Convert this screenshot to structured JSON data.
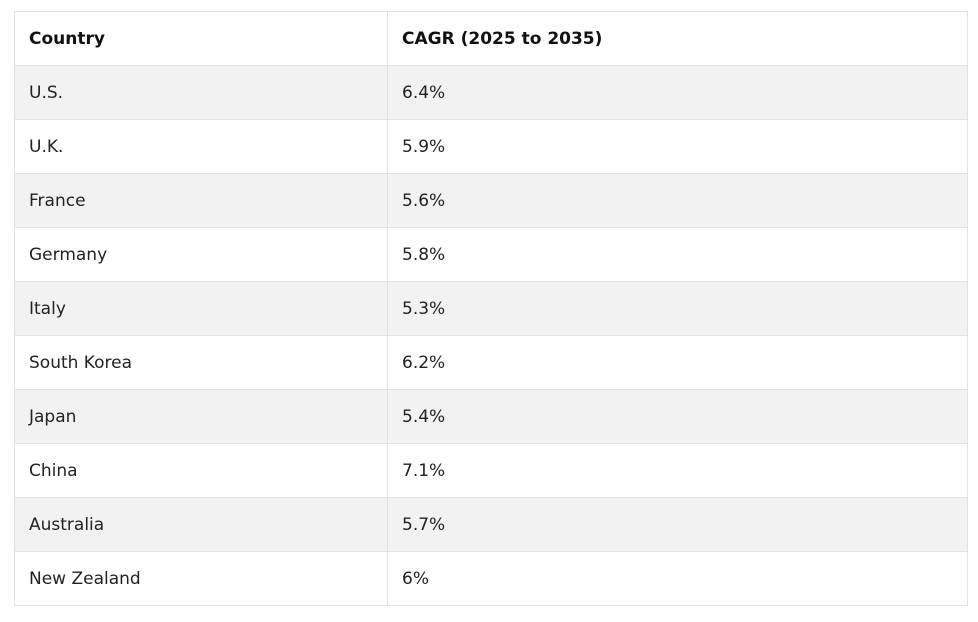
{
  "chart_data": {
    "type": "table",
    "columns": [
      "Country",
      "CAGR (2025 to 2035)"
    ],
    "rows": [
      [
        "U.S.",
        "6.4%"
      ],
      [
        "U.K.",
        "5.9%"
      ],
      [
        "France",
        "5.6%"
      ],
      [
        "Germany",
        "5.8%"
      ],
      [
        "Italy",
        "5.3%"
      ],
      [
        "South Korea",
        "6.2%"
      ],
      [
        "Japan",
        "5.4%"
      ],
      [
        "China",
        "7.1%"
      ],
      [
        "Australia",
        "5.7%"
      ],
      [
        "New Zealand",
        "6%"
      ]
    ]
  },
  "colors": {
    "row_stripe": "#f2f2f2",
    "row_plain": "#ffffff",
    "border": "#e2e2e2",
    "text": "#222222"
  }
}
